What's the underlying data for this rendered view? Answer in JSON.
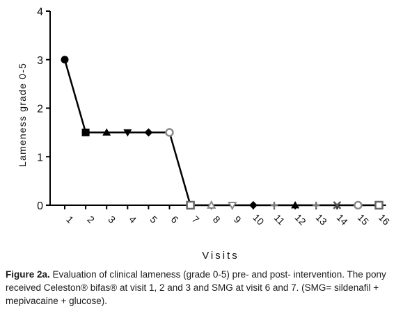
{
  "chart_data": {
    "type": "line",
    "xlabel": "Visits",
    "ylabel": "Lameness grade 0-5",
    "ylim": [
      0,
      4
    ],
    "yticks": [
      0,
      1,
      2,
      3,
      4
    ],
    "categories": [
      "1",
      "2",
      "3",
      "4",
      "5",
      "6",
      "7",
      "8",
      "9",
      "10",
      "11",
      "12",
      "13",
      "14",
      "15",
      "16"
    ],
    "series": [
      {
        "values": [
          3,
          1.5,
          1.5,
          1.5,
          1.5,
          1.5,
          0,
          0,
          0,
          0,
          0,
          0,
          0,
          0,
          0,
          0
        ],
        "markers": [
          "circle",
          "square",
          "triangle-up",
          "triangle-down",
          "diamond",
          "circle-open",
          "square-open",
          "triangle-up-open",
          "triangle-down-open",
          "diamond",
          "plus",
          "triangle-up",
          "plus",
          "cross",
          "circle-open",
          "square-open"
        ],
        "color": "#000000"
      }
    ],
    "legend": "none",
    "grid": false
  },
  "caption": {
    "lead": "Figure 2a.",
    "text": " Evaluation of clinical lameness (grade 0-5) pre- and post- intervention. The pony  received Celeston® bifas® at visit 1, 2 and 3 and SMG at visit 6 and 7. (SMG= sildenafil + mepivacaine + glucose)."
  }
}
